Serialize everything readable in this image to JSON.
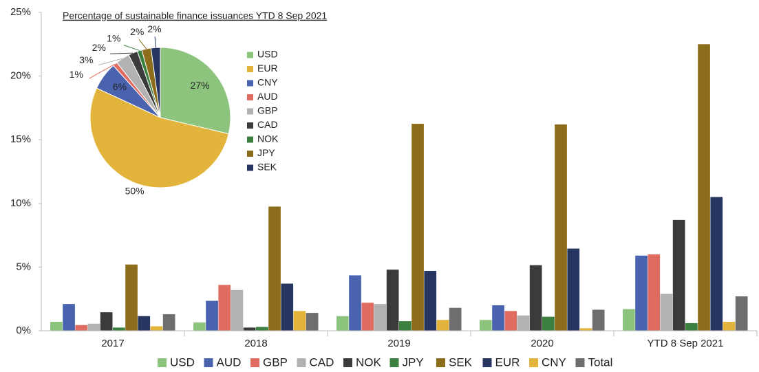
{
  "chart_data": [
    {
      "type": "bar",
      "categories": [
        "2017",
        "2018",
        "2019",
        "2020",
        "YTD 8 Sep 2021"
      ],
      "series": [
        {
          "name": "USD",
          "color": "#8cc47e",
          "values": [
            0.7,
            0.65,
            1.15,
            0.85,
            1.7
          ]
        },
        {
          "name": "AUD",
          "color": "#4a63ae",
          "values": [
            2.1,
            2.35,
            4.35,
            2.0,
            5.9
          ]
        },
        {
          "name": "GBP",
          "color": "#e06b60",
          "values": [
            0.45,
            3.6,
            2.2,
            1.55,
            6.0
          ]
        },
        {
          "name": "CAD",
          "color": "#b2b2b2",
          "values": [
            0.55,
            3.2,
            2.1,
            1.2,
            2.9
          ]
        },
        {
          "name": "NOK",
          "color": "#3b3b3b",
          "values": [
            1.45,
            0.25,
            4.8,
            5.15,
            8.7
          ]
        },
        {
          "name": "JPY",
          "color": "#3c8040",
          "values": [
            0.25,
            0.3,
            0.75,
            1.1,
            0.6
          ]
        },
        {
          "name": "SEK",
          "color": "#8b6d1c",
          "values": [
            5.2,
            9.75,
            16.25,
            16.2,
            22.5
          ]
        },
        {
          "name": "EUR",
          "color": "#263661",
          "values": [
            1.15,
            3.7,
            4.7,
            6.45,
            10.5
          ]
        },
        {
          "name": "CNY",
          "color": "#e2b43c",
          "values": [
            0.35,
            1.55,
            0.85,
            0.2,
            0.7
          ]
        },
        {
          "name": "Total",
          "color": "#6e6e6e",
          "values": [
            1.3,
            1.4,
            1.8,
            1.65,
            2.7
          ]
        }
      ],
      "ylim": [
        0,
        25
      ],
      "yticks": [
        {
          "value": 0,
          "label": "0%"
        },
        {
          "value": 5,
          "label": "5%"
        },
        {
          "value": 10,
          "label": "10%"
        },
        {
          "value": 15,
          "label": "15%"
        },
        {
          "value": 20,
          "label": "20%"
        },
        {
          "value": 25,
          "label": "25%"
        }
      ],
      "grid": false,
      "legend": "bottom"
    },
    {
      "type": "pie",
      "title": "Percentage of sustainable finance issuances YTD  8 Sep 2021",
      "categories": [
        "USD",
        "EUR",
        "CNY",
        "AUD",
        "GBP",
        "CAD",
        "NOK",
        "JPY",
        "SEK"
      ],
      "values": [
        27,
        50,
        6,
        1,
        3,
        2,
        1,
        2,
        2
      ],
      "value_labels": [
        "27%",
        "50%",
        "6%",
        "1%",
        "3%",
        "2%",
        "1%",
        "2%",
        "2%"
      ],
      "colors": [
        "#8cc47e",
        "#e2b43c",
        "#4a63ae",
        "#e06b60",
        "#b2b2b2",
        "#3b3b3b",
        "#3c8040",
        "#8b6d1c",
        "#263661"
      ],
      "legend": "right"
    }
  ]
}
